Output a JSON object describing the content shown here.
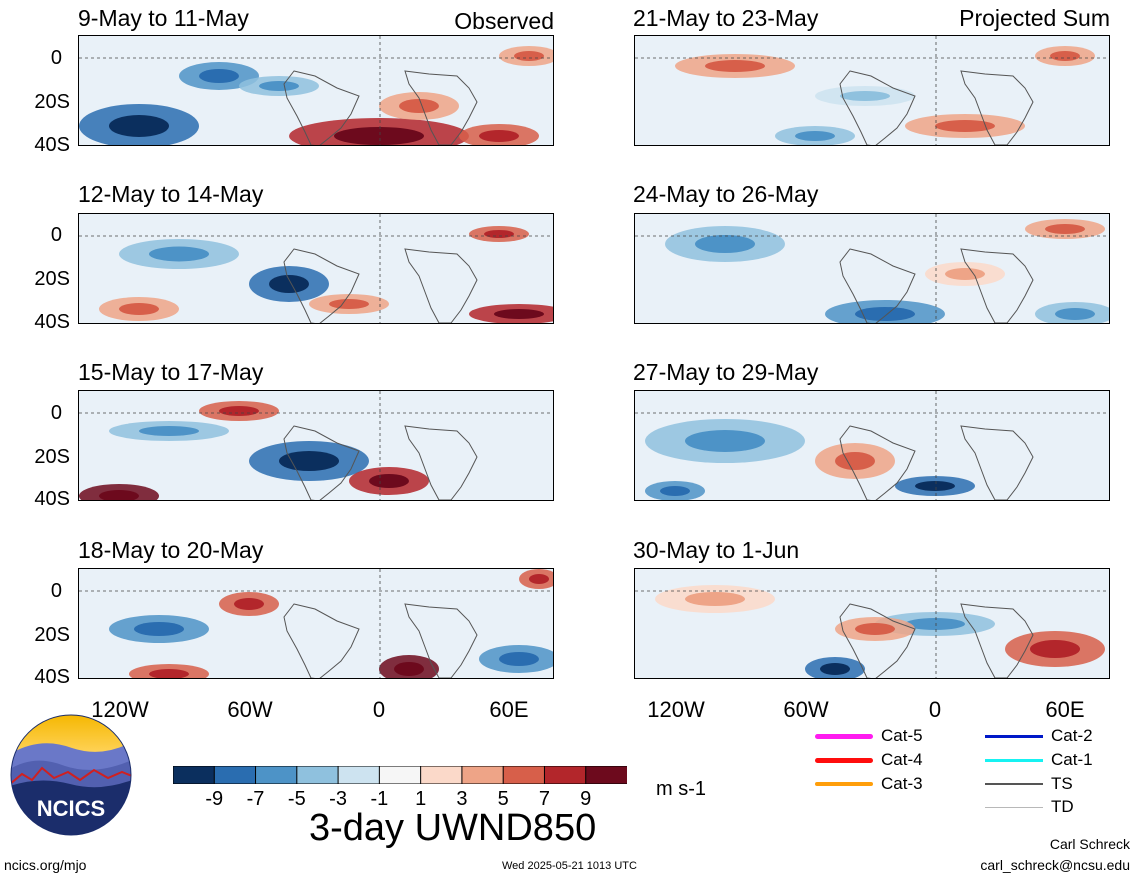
{
  "panels": [
    {
      "id": "obs1",
      "title": "9-May to 11-May",
      "label": "Observed"
    },
    {
      "id": "obs2",
      "title": "12-May to 14-May",
      "label": ""
    },
    {
      "id": "obs3",
      "title": "15-May to 17-May",
      "label": ""
    },
    {
      "id": "obs4",
      "title": "18-May to 20-May",
      "label": ""
    },
    {
      "id": "prj1",
      "title": "21-May to 23-May",
      "label": "Projected Sum"
    },
    {
      "id": "prj2",
      "title": "24-May to 26-May",
      "label": ""
    },
    {
      "id": "prj3",
      "title": "27-May to 29-May",
      "label": ""
    },
    {
      "id": "prj4",
      "title": "30-May to 1-Jun",
      "label": ""
    }
  ],
  "yaxis_labels": [
    "0",
    "20S",
    "40S"
  ],
  "xaxis_labels": [
    "120W",
    "60W",
    "0",
    "60E"
  ],
  "colorbar": {
    "colors": [
      "#0b2f5e",
      "#2a6db0",
      "#4d93c7",
      "#8fc1de",
      "#cde3f0",
      "#f6f6f6",
      "#fbd9c9",
      "#eea487",
      "#d75f4a",
      "#b3262b",
      "#6d0a1d"
    ],
    "ticks": [
      "-9",
      "-7",
      "-5",
      "-3",
      "-1",
      "1",
      "3",
      "5",
      "7",
      "9"
    ],
    "units": "m s-1"
  },
  "legend": [
    {
      "label": "Cat-5",
      "color": "#ff1cf0"
    },
    {
      "label": "Cat-4",
      "color": "#ff0d0d"
    },
    {
      "label": "Cat-3",
      "color": "#ff9e0a"
    },
    {
      "label": "Cat-2",
      "color": "#0018c8"
    },
    {
      "label": "Cat-1",
      "color": "#17f2f2"
    },
    {
      "label": "TS",
      "color": "#555555"
    },
    {
      "label": "TD",
      "color": "#b8b8b8"
    }
  ],
  "logo": {
    "text": "NCICS"
  },
  "footer": {
    "main_title": "3-day UWND850",
    "url": "ncics.org/mjo",
    "timestamp": "Wed 2025-05-21 1013 UTC",
    "author": "Carl Schreck",
    "email": "carl_schreck@ncsu.edu"
  }
}
